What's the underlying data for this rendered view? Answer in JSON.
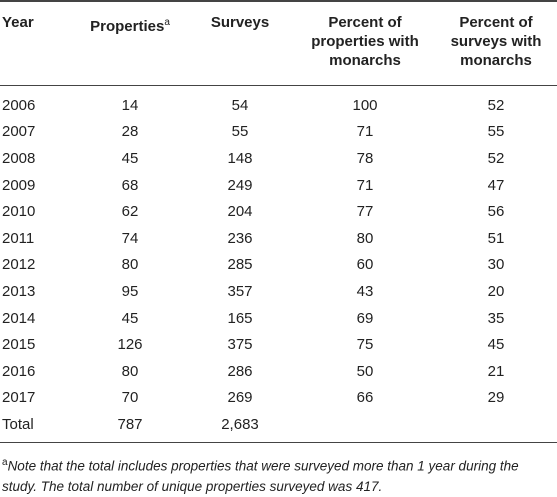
{
  "table": {
    "columns": [
      "Year",
      "Properties",
      "Surveys",
      "Percent of properties with monarchs",
      "Percent of surveys with monarchs"
    ],
    "column_note_marker": "a",
    "rows": [
      [
        "2006",
        "14",
        "54",
        "100",
        "52"
      ],
      [
        "2007",
        "28",
        "55",
        "71",
        "55"
      ],
      [
        "2008",
        "45",
        "148",
        "78",
        "52"
      ],
      [
        "2009",
        "68",
        "249",
        "71",
        "47"
      ],
      [
        "2010",
        "62",
        "204",
        "77",
        "56"
      ],
      [
        "2011",
        "74",
        "236",
        "80",
        "51"
      ],
      [
        "2012",
        "80",
        "285",
        "60",
        "30"
      ],
      [
        "2013",
        "95",
        "357",
        "43",
        "20"
      ],
      [
        "2014",
        "45",
        "165",
        "69",
        "35"
      ],
      [
        "2015",
        "126",
        "375",
        "75",
        "45"
      ],
      [
        "2016",
        "80",
        "286",
        "50",
        "21"
      ],
      [
        "2017",
        "70",
        "269",
        "66",
        "29"
      ]
    ],
    "total": [
      "Total",
      "787",
      "2,683"
    ]
  },
  "footnote": {
    "marker": "a",
    "text": "Note that the total includes properties that were surveyed more than 1 year during the study. The total number of unique properties surveyed was 417."
  }
}
